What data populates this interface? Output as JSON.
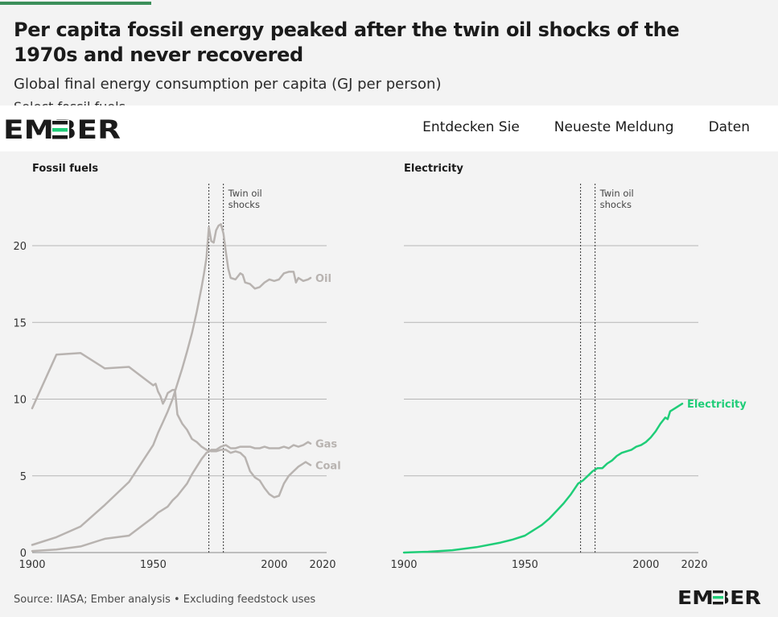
{
  "header": {
    "title": "Per capita fossil energy peaked after the twin oil shocks of the 1970s and never recovered",
    "subtitle": "Global final energy consumption per capita (GJ per person)",
    "cutoff_text": "Select fossil fuels"
  },
  "nav": {
    "brand": "EMBER",
    "links": [
      "Entdecken Sie",
      "Neueste Meldung",
      "Daten"
    ]
  },
  "footer": {
    "source": "Source: IIASA; Ember analysis • Excluding feedstock uses",
    "brand": "EMBER"
  },
  "colors": {
    "brand_dark": "#1b1b1b",
    "brand_green": "#1fcd78",
    "fossil_line": "#b8b3b0",
    "electricity_line": "#1fcd78",
    "grid": "#b5b5b5"
  },
  "chart_data": [
    {
      "type": "line",
      "title": "Fossil fuels",
      "x_ticks": [
        1900,
        1950,
        2000,
        2020
      ],
      "y_ticks": [
        0,
        5,
        10,
        15,
        20
      ],
      "xlim": [
        1900,
        2020
      ],
      "ylim": [
        0,
        20
      ],
      "grid": "horizontal",
      "annotation": {
        "text": [
          "Twin oil",
          "shocks"
        ],
        "x": [
          1973,
          1979
        ]
      },
      "series": [
        {
          "name": "Oil",
          "points": [
            [
              1900,
              0.5
            ],
            [
              1910,
              1.0
            ],
            [
              1920,
              1.7
            ],
            [
              1930,
              3.1
            ],
            [
              1940,
              4.6
            ],
            [
              1950,
              7.0
            ],
            [
              1952,
              7.8
            ],
            [
              1954,
              8.5
            ],
            [
              1956,
              9.2
            ],
            [
              1958,
              10.0
            ],
            [
              1960,
              11.0
            ],
            [
              1962,
              12.0
            ],
            [
              1964,
              13.1
            ],
            [
              1966,
              14.3
            ],
            [
              1968,
              15.7
            ],
            [
              1970,
              17.3
            ],
            [
              1971,
              18.2
            ],
            [
              1972,
              19.2
            ],
            [
              1973,
              21.2
            ],
            [
              1974,
              20.3
            ],
            [
              1975,
              20.2
            ],
            [
              1976,
              21.0
            ],
            [
              1977,
              21.3
            ],
            [
              1978,
              21.4
            ],
            [
              1979,
              20.8
            ],
            [
              1980,
              19.6
            ],
            [
              1981,
              18.5
            ],
            [
              1982,
              17.9
            ],
            [
              1984,
              17.8
            ],
            [
              1986,
              18.2
            ],
            [
              1987,
              18.1
            ],
            [
              1988,
              17.6
            ],
            [
              1990,
              17.5
            ],
            [
              1992,
              17.2
            ],
            [
              1994,
              17.3
            ],
            [
              1996,
              17.6
            ],
            [
              1998,
              17.8
            ],
            [
              2000,
              17.7
            ],
            [
              2002,
              17.8
            ],
            [
              2004,
              18.2
            ],
            [
              2006,
              18.3
            ],
            [
              2008,
              18.3
            ],
            [
              2009,
              17.6
            ],
            [
              2010,
              17.9
            ],
            [
              2012,
              17.7
            ],
            [
              2014,
              17.8
            ],
            [
              2015,
              17.9
            ]
          ]
        },
        {
          "name": "Gas",
          "points": [
            [
              1900,
              0.1
            ],
            [
              1910,
              0.2
            ],
            [
              1920,
              0.4
            ],
            [
              1930,
              0.9
            ],
            [
              1940,
              1.1
            ],
            [
              1950,
              2.3
            ],
            [
              1952,
              2.6
            ],
            [
              1954,
              2.8
            ],
            [
              1956,
              3.0
            ],
            [
              1958,
              3.4
            ],
            [
              1960,
              3.7
            ],
            [
              1962,
              4.1
            ],
            [
              1964,
              4.5
            ],
            [
              1966,
              5.1
            ],
            [
              1968,
              5.6
            ],
            [
              1970,
              6.1
            ],
            [
              1972,
              6.5
            ],
            [
              1974,
              6.7
            ],
            [
              1976,
              6.7
            ],
            [
              1978,
              6.9
            ],
            [
              1980,
              7.0
            ],
            [
              1982,
              6.8
            ],
            [
              1984,
              6.8
            ],
            [
              1986,
              6.9
            ],
            [
              1988,
              6.9
            ],
            [
              1990,
              6.9
            ],
            [
              1992,
              6.8
            ],
            [
              1994,
              6.8
            ],
            [
              1996,
              6.9
            ],
            [
              1998,
              6.8
            ],
            [
              2000,
              6.8
            ],
            [
              2002,
              6.8
            ],
            [
              2004,
              6.9
            ],
            [
              2006,
              6.8
            ],
            [
              2008,
              7.0
            ],
            [
              2010,
              6.9
            ],
            [
              2012,
              7.0
            ],
            [
              2014,
              7.2
            ],
            [
              2015,
              7.1
            ]
          ]
        },
        {
          "name": "Coal",
          "points": [
            [
              1900,
              9.4
            ],
            [
              1910,
              12.9
            ],
            [
              1920,
              13.0
            ],
            [
              1930,
              12.0
            ],
            [
              1940,
              12.1
            ],
            [
              1950,
              10.9
            ],
            [
              1951,
              11.0
            ],
            [
              1952,
              10.5
            ],
            [
              1953,
              10.2
            ],
            [
              1954,
              9.7
            ],
            [
              1955,
              10.0
            ],
            [
              1956,
              10.4
            ],
            [
              1958,
              10.6
            ],
            [
              1959,
              10.6
            ],
            [
              1960,
              9.0
            ],
            [
              1962,
              8.4
            ],
            [
              1964,
              8.0
            ],
            [
              1966,
              7.4
            ],
            [
              1968,
              7.2
            ],
            [
              1970,
              6.9
            ],
            [
              1972,
              6.7
            ],
            [
              1974,
              6.6
            ],
            [
              1976,
              6.6
            ],
            [
              1978,
              6.7
            ],
            [
              1980,
              6.7
            ],
            [
              1982,
              6.5
            ],
            [
              1984,
              6.6
            ],
            [
              1986,
              6.5
            ],
            [
              1988,
              6.2
            ],
            [
              1990,
              5.3
            ],
            [
              1992,
              4.9
            ],
            [
              1994,
              4.7
            ],
            [
              1996,
              4.2
            ],
            [
              1998,
              3.8
            ],
            [
              2000,
              3.6
            ],
            [
              2002,
              3.7
            ],
            [
              2004,
              4.5
            ],
            [
              2006,
              5.0
            ],
            [
              2008,
              5.3
            ],
            [
              2010,
              5.6
            ],
            [
              2012,
              5.8
            ],
            [
              2013,
              5.9
            ],
            [
              2014,
              5.8
            ],
            [
              2015,
              5.7
            ]
          ]
        }
      ]
    },
    {
      "type": "line",
      "title": "Electricity",
      "x_ticks": [
        1900,
        1950,
        2000,
        2020
      ],
      "y_ticks": [
        0,
        5,
        10,
        15,
        20
      ],
      "xlim": [
        1900,
        2020
      ],
      "ylim": [
        0,
        20
      ],
      "grid": "horizontal",
      "annotation": {
        "text": [
          "Twin oil",
          "shocks"
        ],
        "x": [
          1973,
          1979
        ]
      },
      "series": [
        {
          "name": "Electricity",
          "points": [
            [
              1900,
              0.0
            ],
            [
              1910,
              0.05
            ],
            [
              1920,
              0.15
            ],
            [
              1930,
              0.35
            ],
            [
              1940,
              0.65
            ],
            [
              1945,
              0.85
            ],
            [
              1950,
              1.1
            ],
            [
              1953,
              1.4
            ],
            [
              1955,
              1.6
            ],
            [
              1957,
              1.8
            ],
            [
              1960,
              2.2
            ],
            [
              1963,
              2.7
            ],
            [
              1966,
              3.2
            ],
            [
              1969,
              3.8
            ],
            [
              1972,
              4.5
            ],
            [
              1974,
              4.7
            ],
            [
              1976,
              5.0
            ],
            [
              1978,
              5.3
            ],
            [
              1980,
              5.5
            ],
            [
              1982,
              5.5
            ],
            [
              1984,
              5.8
            ],
            [
              1986,
              6.0
            ],
            [
              1988,
              6.3
            ],
            [
              1990,
              6.5
            ],
            [
              1992,
              6.6
            ],
            [
              1994,
              6.7
            ],
            [
              1996,
              6.9
            ],
            [
              1998,
              7.0
            ],
            [
              2000,
              7.2
            ],
            [
              2002,
              7.5
            ],
            [
              2004,
              7.9
            ],
            [
              2006,
              8.4
            ],
            [
              2008,
              8.8
            ],
            [
              2009,
              8.7
            ],
            [
              2010,
              9.2
            ],
            [
              2012,
              9.4
            ],
            [
              2014,
              9.6
            ],
            [
              2015,
              9.7
            ]
          ]
        }
      ]
    }
  ]
}
